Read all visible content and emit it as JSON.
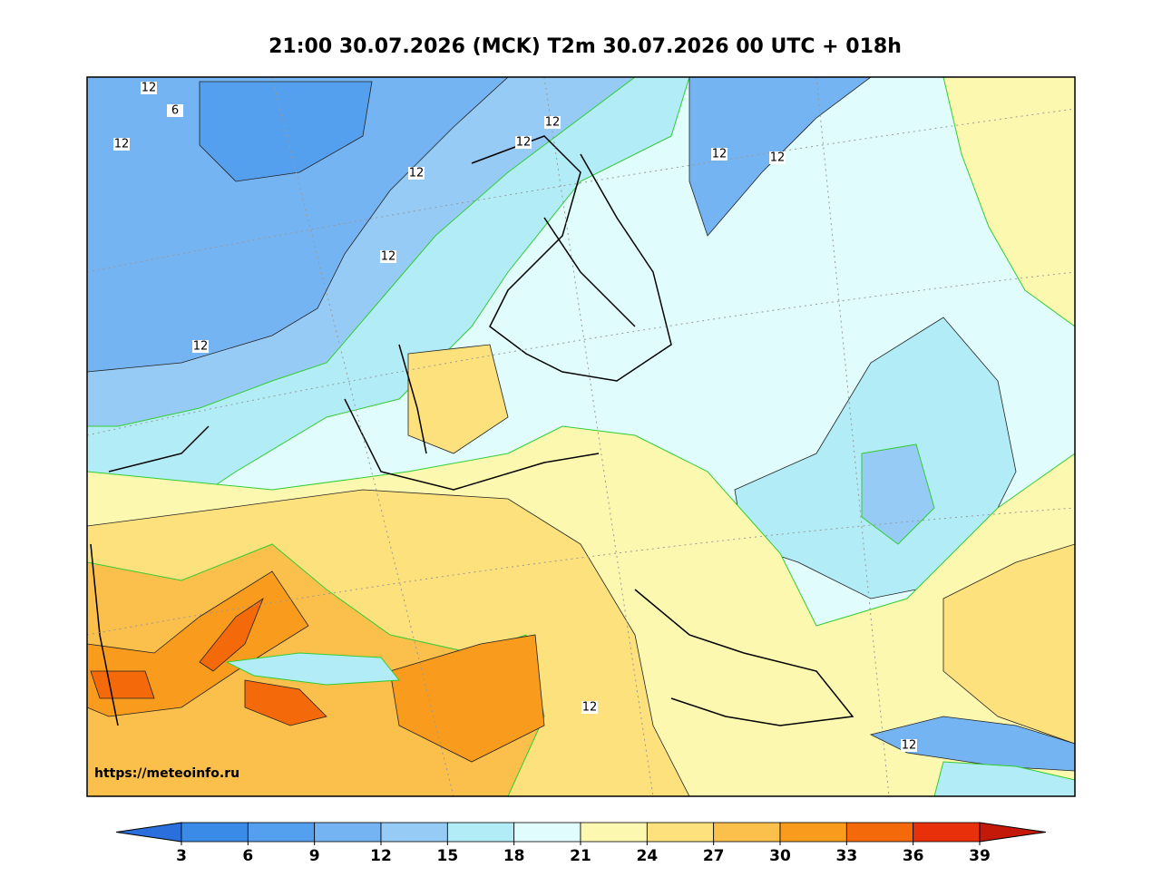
{
  "header": {
    "title": "21:00 30.07.2026 (MCK) T2m 30.07.2026 00 UTC + 018h"
  },
  "map": {
    "contour_labels": [
      "12",
      "6",
      "12",
      "12",
      "12",
      "12",
      "12",
      "12",
      "12",
      "12",
      "12",
      "12"
    ],
    "watermark": "https://meteoinfo.ru"
  },
  "colorbar": {
    "ticks": [
      3,
      6,
      9,
      12,
      15,
      18,
      21,
      24,
      27,
      30,
      33,
      36,
      39
    ],
    "colors": [
      "#2a6fdb",
      "#3a8ae8",
      "#55a0ee",
      "#74b4f2",
      "#96cbf5",
      "#b2ecf7",
      "#e0fcfc",
      "#fdf8b0",
      "#fde17c",
      "#fbbf4c",
      "#f99c1d",
      "#f46a0a",
      "#e8300a",
      "#c41808"
    ]
  }
}
